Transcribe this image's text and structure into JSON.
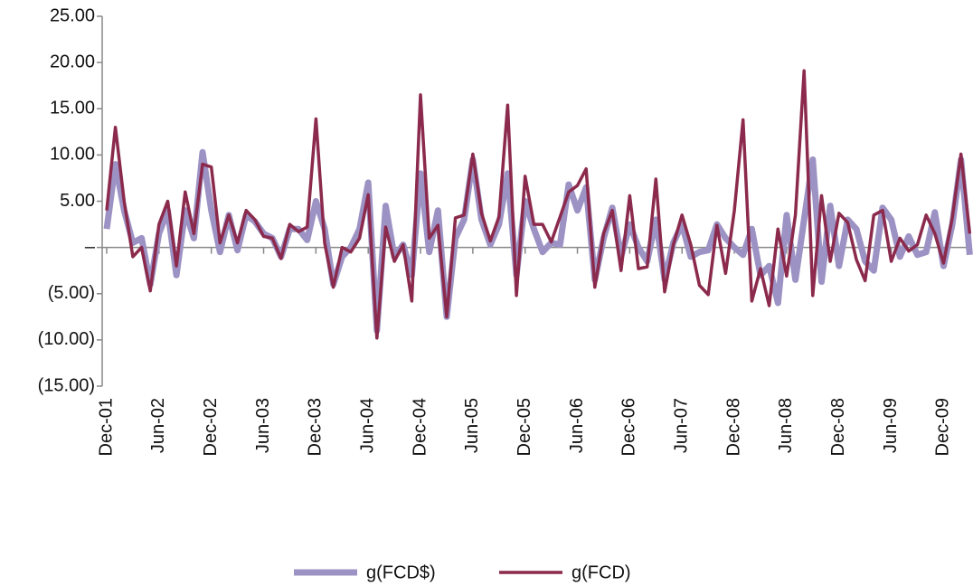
{
  "chart_data": {
    "type": "line",
    "categories": [
      "Dec-01",
      null,
      null,
      null,
      null,
      null,
      "Jun-02",
      null,
      null,
      null,
      null,
      null,
      "Dec-02",
      null,
      null,
      null,
      null,
      null,
      "Jun-03",
      null,
      null,
      null,
      null,
      null,
      "Dec-03",
      null,
      null,
      null,
      null,
      null,
      "Jun-04",
      null,
      null,
      null,
      null,
      null,
      "Dec-04",
      null,
      null,
      null,
      null,
      null,
      "Jun-05",
      null,
      null,
      null,
      null,
      null,
      "Dec-05",
      null,
      null,
      null,
      null,
      null,
      "Jun-06",
      null,
      null,
      null,
      null,
      null,
      "Dec-06",
      null,
      null,
      null,
      null,
      null,
      "Jun-07",
      null,
      null,
      null,
      null,
      null,
      "Dec-08",
      null,
      null,
      null,
      null,
      null,
      "Jun-08",
      null,
      null,
      null,
      null,
      null,
      "Dec-08",
      null,
      null,
      null,
      null,
      null,
      "Jun-09",
      null,
      null,
      null,
      null,
      null,
      "Dec-09",
      null,
      null,
      null
    ],
    "series": [
      {
        "name": "g(FCD$)",
        "color": "#9d92c4",
        "values": [
          2,
          9,
          4,
          0.5,
          1,
          -4,
          1.5,
          4,
          -3,
          4,
          1,
          10.3,
          4,
          -0.5,
          3.5,
          -0.3,
          3.5,
          2.8,
          1.5,
          1,
          -1,
          2,
          2,
          0.8,
          5,
          2,
          -4,
          -1,
          0,
          2,
          7,
          -9,
          4.5,
          -1,
          0.3,
          -3,
          8,
          -0.5,
          4,
          -7.5,
          1,
          3,
          9.5,
          3,
          0.3,
          2.5,
          8,
          -3,
          5,
          2,
          -0.5,
          0.5,
          0.3,
          6.8,
          4,
          6.5,
          -3.5,
          1,
          4.3,
          -1,
          2.5,
          0,
          -1.5,
          3,
          -3.5,
          0.5,
          2.5,
          -1,
          -0.5,
          -0.3,
          2.5,
          1,
          0,
          -0.8,
          2,
          -3,
          -2,
          -6,
          3.5,
          -3.5,
          3,
          9.5,
          -3.7,
          4.5,
          -2,
          3,
          2,
          -1.5,
          -2.5,
          4.3,
          3,
          -1,
          1.2,
          -0.8,
          -0.5,
          3.8,
          -2,
          2.5,
          9.5,
          -0.8
        ]
      },
      {
        "name": "g(FCD)",
        "color": "#8b2a4c",
        "values": [
          4,
          13,
          5,
          -1,
          0,
          -4.7,
          2.5,
          5,
          -2,
          6,
          1.5,
          9,
          8.7,
          0.5,
          3.5,
          0.5,
          4,
          3,
          1.2,
          1,
          -1.2,
          2.5,
          1.7,
          2.2,
          13.9,
          0.5,
          -4.3,
          0,
          -0.5,
          1,
          5.7,
          -9.8,
          2.2,
          -1.5,
          0.3,
          -5.8,
          16.5,
          1,
          2.4,
          -7.5,
          3.2,
          3.5,
          10.1,
          3.7,
          0.7,
          3.3,
          15.4,
          -5.2,
          7.7,
          2.5,
          2.5,
          0.6,
          3.3,
          6,
          6.7,
          8.5,
          -4.3,
          1.5,
          4,
          -2.5,
          5.6,
          -2.3,
          -2.1,
          7.4,
          -4.8,
          0.3,
          3.5,
          0.3,
          -4.1,
          -5.1,
          2.4,
          -2.8,
          4,
          13.8,
          -5.8,
          -2.3,
          -6.3,
          2,
          -3.1,
          3.5,
          19.1,
          -5.2,
          5.6,
          -1.5,
          3.7,
          2.7,
          -1.3,
          -3.6,
          3.5,
          4,
          -1.5,
          1,
          -0.4,
          0.3,
          3.5,
          1.5,
          -1.7,
          3.2,
          10.1,
          1.5
        ]
      }
    ],
    "ylim": [
      -15,
      25
    ],
    "yticks": [
      {
        "value": -15,
        "label": "(15.00)"
      },
      {
        "value": -10,
        "label": "(10.00)"
      },
      {
        "value": -5,
        "label": "(5.00)"
      },
      {
        "value": 0,
        "label": "–"
      },
      {
        "value": 5,
        "label": "5.00"
      },
      {
        "value": 10,
        "label": "10.00"
      },
      {
        "value": 15,
        "label": "15.00"
      },
      {
        "value": 20,
        "label": "20.00"
      },
      {
        "value": 25,
        "label": "25.00"
      }
    ],
    "legend": "bottom"
  }
}
